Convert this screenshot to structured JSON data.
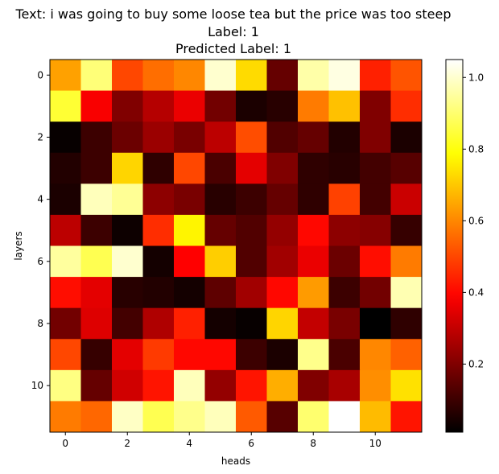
{
  "title_lines": [
    "Text: i was going to buy some loose tea but the price was too steep",
    "Label: 1",
    "Predicted Label: 1"
  ],
  "chart_data": {
    "type": "heatmap",
    "title": "Text: i was going to buy some loose tea but the price was too steep\nLabel: 1\nPredicted Label: 1",
    "xlabel": "heads",
    "ylabel": "layers",
    "x_ticks": [
      0,
      2,
      4,
      6,
      8,
      10
    ],
    "y_ticks": [
      0,
      2,
      4,
      6,
      8,
      10
    ],
    "colormap": "hot",
    "colorbar": {
      "min": 0.01,
      "max": 1.05,
      "ticks": [
        0.2,
        0.4,
        0.6,
        0.8,
        1.0
      ]
    },
    "grid": false,
    "values": [
      [
        0.64,
        0.91,
        0.5,
        0.56,
        0.6,
        1.0,
        0.73,
        0.16,
        0.96,
        1.02,
        0.44,
        0.52
      ],
      [
        0.84,
        0.38,
        0.2,
        0.28,
        0.36,
        0.18,
        0.05,
        0.07,
        0.58,
        0.69,
        0.2,
        0.46
      ],
      [
        0.02,
        0.1,
        0.17,
        0.24,
        0.19,
        0.29,
        0.51,
        0.13,
        0.16,
        0.06,
        0.2,
        0.05
      ],
      [
        0.06,
        0.1,
        0.72,
        0.08,
        0.5,
        0.12,
        0.35,
        0.2,
        0.08,
        0.07,
        0.11,
        0.14
      ],
      [
        0.05,
        0.98,
        0.94,
        0.22,
        0.19,
        0.07,
        0.1,
        0.16,
        0.08,
        0.49,
        0.11,
        0.31
      ],
      [
        0.29,
        0.1,
        0.03,
        0.46,
        0.77,
        0.16,
        0.13,
        0.23,
        0.4,
        0.22,
        0.21,
        0.09
      ],
      [
        0.95,
        0.87,
        1.0,
        0.04,
        0.39,
        0.71,
        0.13,
        0.25,
        0.36,
        0.17,
        0.41,
        0.58
      ],
      [
        0.41,
        0.35,
        0.07,
        0.06,
        0.04,
        0.15,
        0.25,
        0.4,
        0.63,
        0.1,
        0.18,
        0.97
      ],
      [
        0.18,
        0.34,
        0.11,
        0.27,
        0.44,
        0.04,
        0.02,
        0.72,
        0.3,
        0.19,
        0.01,
        0.08
      ],
      [
        0.5,
        0.09,
        0.35,
        0.48,
        0.4,
        0.4,
        0.1,
        0.05,
        0.93,
        0.12,
        0.6,
        0.54
      ],
      [
        0.92,
        0.16,
        0.32,
        0.42,
        0.98,
        0.23,
        0.42,
        0.66,
        0.2,
        0.26,
        0.61,
        0.74
      ],
      [
        0.58,
        0.55,
        0.99,
        0.87,
        0.93,
        0.98,
        0.53,
        0.14,
        0.9,
        1.05,
        0.68,
        0.42
      ]
    ]
  }
}
